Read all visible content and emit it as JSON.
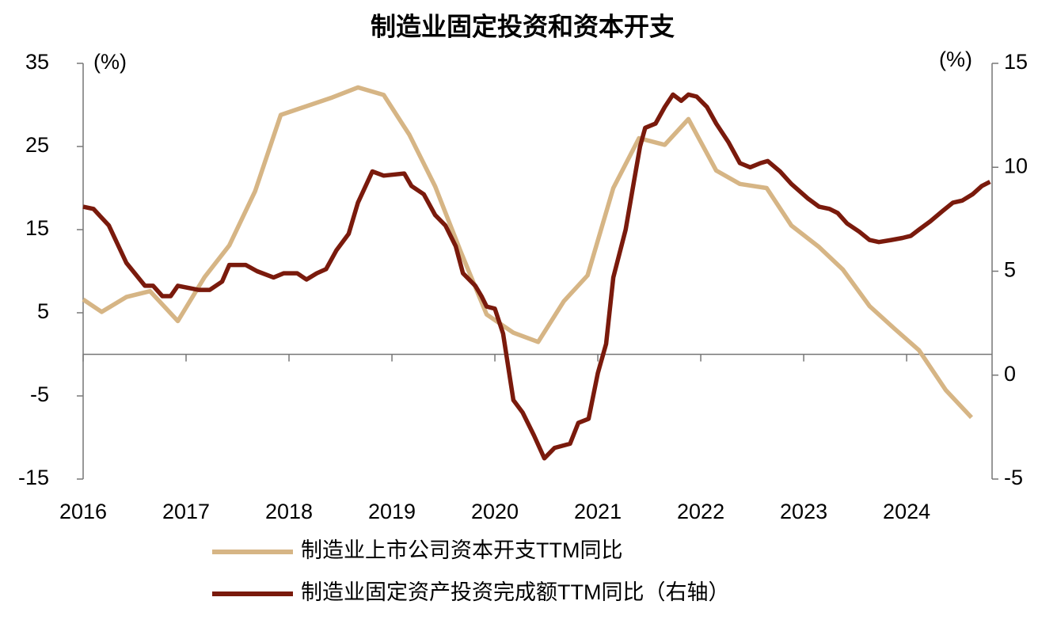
{
  "chart_data": {
    "type": "line",
    "title": "制造业固定投资和资本开支",
    "y_unit_label": "(%)",
    "y2_unit_label": "(%)",
    "xlim": [
      2016,
      2024.83
    ],
    "xticks": [
      2016,
      2017,
      2018,
      2019,
      2020,
      2021,
      2022,
      2023,
      2024
    ],
    "ylim": [
      -15,
      35
    ],
    "yticks": [
      35,
      25,
      15,
      5,
      -5,
      -15
    ],
    "y2lim": [
      -5,
      15
    ],
    "y2ticks": [
      15,
      10,
      5,
      0,
      -5
    ],
    "negative_tick_color": "#ff0000",
    "legend": "bottom",
    "series": [
      {
        "name": "制造业上市公司资本开支TTM同比",
        "color": "#d6b585",
        "x": [
          2016.0,
          2016.18,
          2016.42,
          2016.65,
          2016.92,
          2017.18,
          2017.42,
          2017.67,
          2017.92,
          2018.42,
          2018.67,
          2018.92,
          2019.17,
          2019.42,
          2019.67,
          2019.92,
          2020.18,
          2020.42,
          2020.67,
          2020.9,
          2021.15,
          2021.4,
          2021.65,
          2021.88,
          2022.15,
          2022.38,
          2022.64,
          2022.88,
          2023.15,
          2023.38,
          2023.64,
          2023.88,
          2024.12,
          2024.38,
          2024.63
        ],
        "values": [
          6.6,
          5.1,
          6.9,
          7.6,
          4.0,
          9.3,
          13.1,
          19.6,
          28.8,
          30.9,
          32.1,
          31.2,
          26.4,
          20.2,
          12.3,
          4.8,
          2.6,
          1.5,
          6.4,
          9.5,
          20.0,
          26.0,
          25.2,
          28.3,
          22.1,
          20.5,
          20.0,
          15.5,
          12.9,
          10.2,
          5.8,
          3.1,
          0.5,
          -4.3,
          -7.6
        ]
      },
      {
        "name": "制造业固定资产投资完成额TTM同比（右轴）",
        "color": "#7a1a0c",
        "axis": "y2",
        "x": [
          2016.0,
          2016.1,
          2016.25,
          2016.42,
          2016.6,
          2016.68,
          2016.77,
          2016.85,
          2016.92,
          2017.12,
          2017.23,
          2017.35,
          2017.42,
          2017.58,
          2017.69,
          2017.85,
          2017.95,
          2018.08,
          2018.17,
          2018.27,
          2018.36,
          2018.46,
          2018.58,
          2018.67,
          2018.81,
          2018.92,
          2019.12,
          2019.19,
          2019.31,
          2019.42,
          2019.52,
          2019.62,
          2019.69,
          2019.81,
          2019.87,
          2019.92,
          2020.0,
          2020.08,
          2020.18,
          2020.27,
          2020.38,
          2020.48,
          2020.58,
          2020.73,
          2020.81,
          2020.91,
          2021.0,
          2021.08,
          2021.15,
          2021.27,
          2021.35,
          2021.41,
          2021.46,
          2021.56,
          2021.65,
          2021.73,
          2021.81,
          2021.88,
          2021.96,
          2022.06,
          2022.15,
          2022.27,
          2022.38,
          2022.48,
          2022.58,
          2022.65,
          2022.77,
          2022.88,
          2023.04,
          2023.15,
          2023.25,
          2023.33,
          2023.42,
          2023.54,
          2023.64,
          2023.73,
          2023.85,
          2023.96,
          2024.04,
          2024.12,
          2024.23,
          2024.35,
          2024.45,
          2024.54,
          2024.64,
          2024.73,
          2024.81
        ],
        "values": [
          8.1,
          8.0,
          7.2,
          5.4,
          4.3,
          4.3,
          3.8,
          3.8,
          4.3,
          4.1,
          4.1,
          4.5,
          5.3,
          5.3,
          5.0,
          4.7,
          4.9,
          4.9,
          4.6,
          4.9,
          5.1,
          6.0,
          6.8,
          8.3,
          9.8,
          9.6,
          9.7,
          9.1,
          8.7,
          7.7,
          7.2,
          6.2,
          4.9,
          4.3,
          3.8,
          3.3,
          3.2,
          2.0,
          -1.2,
          -1.8,
          -2.9,
          -4.0,
          -3.5,
          -3.3,
          -2.3,
          -2.1,
          0.1,
          1.5,
          4.7,
          7.0,
          9.3,
          11.0,
          11.9,
          12.1,
          12.9,
          13.5,
          13.2,
          13.5,
          13.4,
          12.9,
          12.1,
          11.2,
          10.2,
          10.0,
          10.2,
          10.3,
          9.8,
          9.2,
          8.5,
          8.1,
          8.0,
          7.8,
          7.3,
          6.9,
          6.5,
          6.4,
          6.5,
          6.6,
          6.7,
          7.0,
          7.4,
          7.9,
          8.3,
          8.4,
          8.7,
          9.1,
          9.3
        ]
      }
    ]
  }
}
